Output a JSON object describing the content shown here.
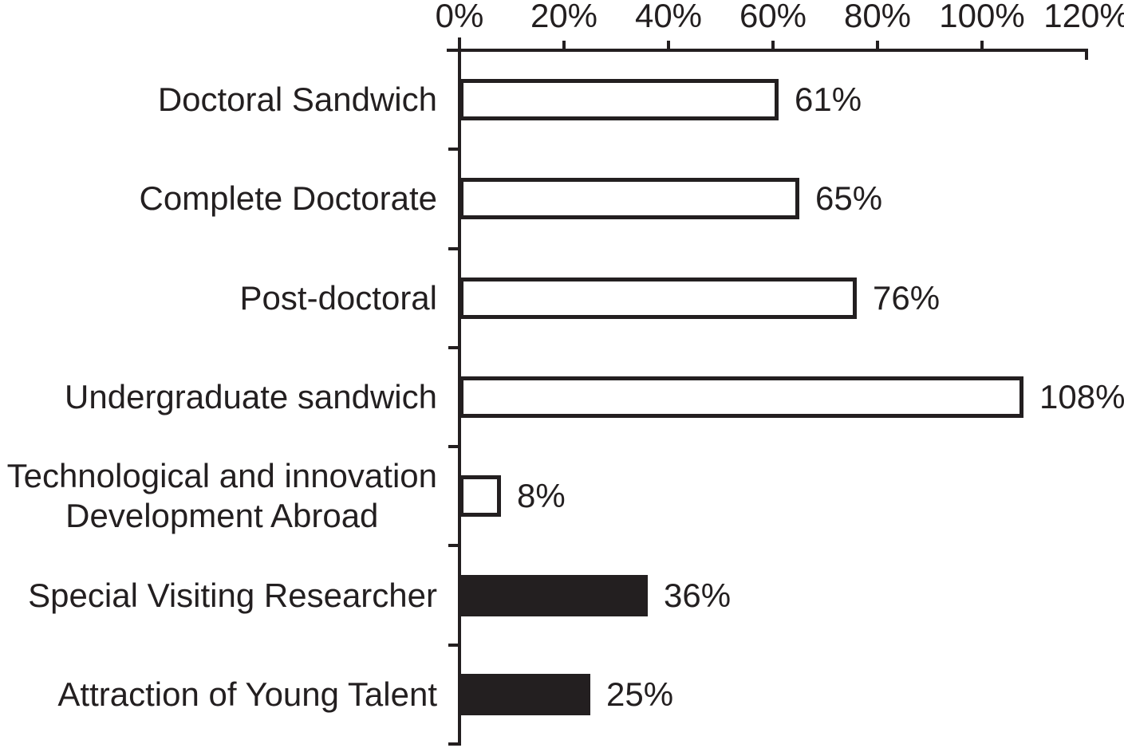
{
  "chart_data": {
    "type": "bar",
    "orientation": "horizontal",
    "title": "",
    "categories": [
      "Doctoral Sandwich",
      "Complete Doctorate",
      "Post-doctoral",
      "Undergraduate sandwich",
      "Technological and innovation\nDevelopment Abroad",
      "Special Visiting Researcher",
      "Attraction of Young Talent"
    ],
    "values": [
      61,
      65,
      76,
      108,
      8,
      36,
      25
    ],
    "value_labels": [
      "61%",
      "65%",
      "76%",
      "108%",
      "8%",
      "36%",
      "25%"
    ],
    "bar_styles": [
      "outline",
      "outline",
      "outline",
      "outline",
      "outline",
      "filled",
      "filled"
    ],
    "x_axis": {
      "position": "top",
      "tick_labels": [
        "0%",
        "20%",
        "40%",
        "60%",
        "80%",
        "100%",
        "120%"
      ],
      "tick_values": [
        0,
        20,
        40,
        60,
        80,
        100,
        120
      ],
      "min": 0,
      "max": 120
    },
    "legend": "none",
    "grid": false,
    "colors": {
      "ink": "#231f20",
      "bar_outline": "#231f20",
      "bar_fill_filled": "#231f20",
      "bar_fill_outline": "#ffffff",
      "background": "#ffffff"
    }
  }
}
